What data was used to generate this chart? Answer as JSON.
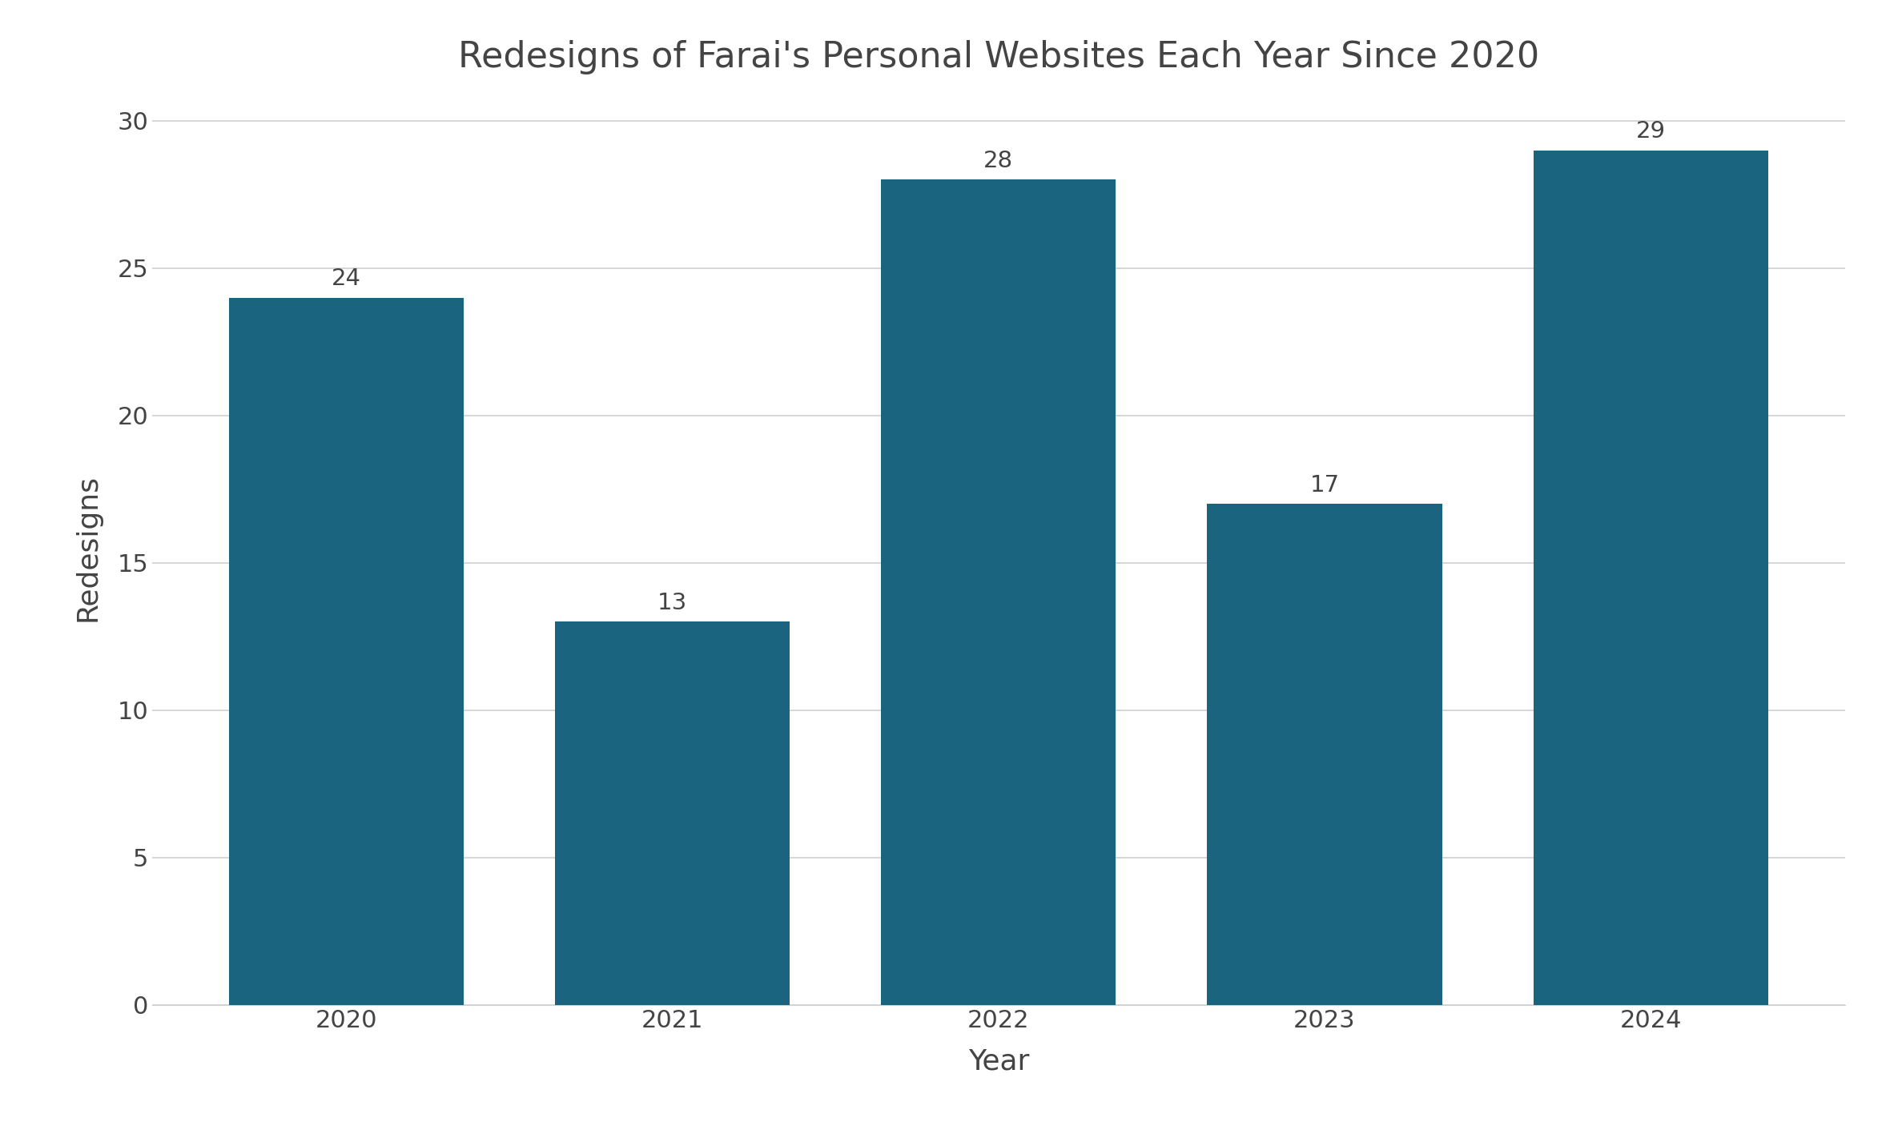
{
  "title": "Redesigns of Farai's Personal Websites Each Year Since 2020",
  "xlabel": "Year",
  "ylabel": "Redesigns",
  "categories": [
    "2020",
    "2021",
    "2022",
    "2023",
    "2024"
  ],
  "values": [
    24,
    13,
    28,
    17,
    29
  ],
  "bar_color": "#1a6480",
  "background_color": "#ffffff",
  "ylim": [
    0,
    31
  ],
  "yticks": [
    0,
    5,
    10,
    15,
    20,
    25,
    30
  ],
  "title_fontsize": 32,
  "axis_label_fontsize": 26,
  "tick_fontsize": 22,
  "annotation_fontsize": 21,
  "bar_width": 0.72,
  "grid_color": "#d0d0d0",
  "text_color": "#444444"
}
